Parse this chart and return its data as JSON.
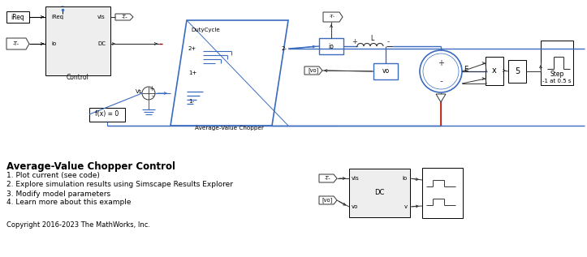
{
  "title": "Average-Value Chopper Control",
  "bullet1": "1. Plot current (see code)",
  "bullet2": "2. Explore simulation results using Simscape Results Explorer",
  "bullet3": "3. Modify model parameters",
  "bullet4": "4. Learn more about this example",
  "copyright": "Copyright 2016-2023 The MathWorks, Inc.",
  "bg_color": "#ffffff",
  "block_edge": "#333333",
  "blue": "#3a6bbf",
  "gray_fill": "#eeeeee",
  "red": "#cc2200"
}
